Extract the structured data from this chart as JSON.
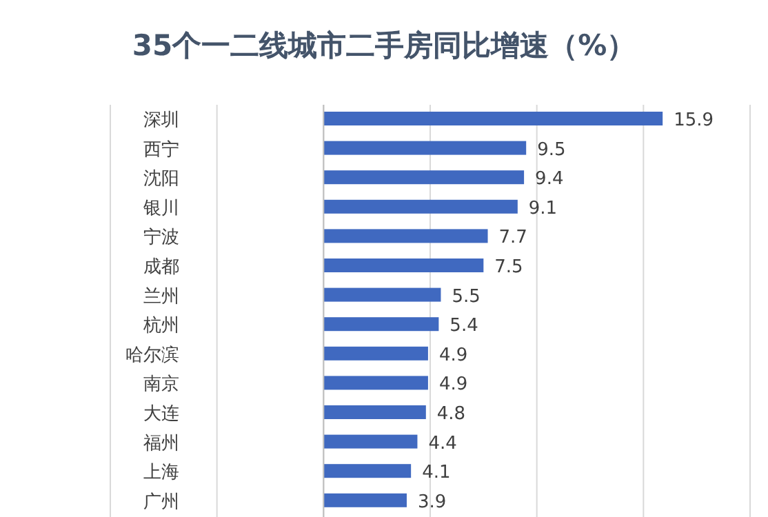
{
  "chart_data": {
    "type": "bar",
    "orientation": "horizontal",
    "title": "35个一二线城市二手房同比增速（%）",
    "categories": [
      "深圳",
      "西宁",
      "沈阳",
      "银川",
      "宁波",
      "成都",
      "兰州",
      "杭州",
      "哈尔滨",
      "南京",
      "大连",
      "福州",
      "上海",
      "广州"
    ],
    "values": [
      15.9,
      9.5,
      9.4,
      9.1,
      7.7,
      7.5,
      5.5,
      5.4,
      4.9,
      4.9,
      4.8,
      4.4,
      4.1,
      3.9
    ],
    "color": "#4069c0",
    "data_labels": true,
    "grid": "x",
    "xlim": [
      -10,
      20
    ],
    "xticks": [
      {
        "value": -10,
        "label": null
      },
      {
        "value": -5,
        "label": null
      },
      {
        "value": 0,
        "label": null
      },
      {
        "value": 5,
        "label": null
      },
      {
        "value": 10,
        "label": null
      },
      {
        "value": 15,
        "label": null
      },
      {
        "value": 20,
        "label": null
      }
    ]
  }
}
